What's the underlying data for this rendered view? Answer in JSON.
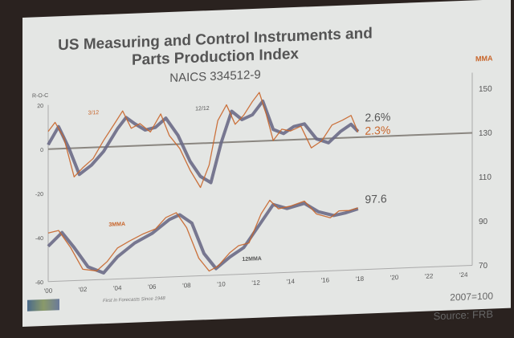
{
  "chart_data": {
    "type": "line",
    "title": "US Measuring and Control Instruments and",
    "title_line2": "Parts Production Index",
    "subtitle": "NAICS 334512-9",
    "left_axis": {
      "label": "R-O-C",
      "ticks": [
        20,
        0,
        -20,
        -40,
        -60
      ],
      "range": [
        -60,
        20
      ]
    },
    "right_axis": {
      "label": "MMA",
      "ticks": [
        150,
        130,
        110,
        90,
        70
      ],
      "range": [
        70,
        150
      ]
    },
    "x_ticks": [
      "'00",
      "'02",
      "'04",
      "'06",
      "'08",
      "'10",
      "'12",
      "'14",
      "'16",
      "'18",
      "'20",
      "'22",
      "'24"
    ],
    "x_range": [
      2000,
      2024.5
    ],
    "series": [
      {
        "name": "12/12",
        "axis": "left",
        "color": "#6a6a86",
        "x": [
          2000,
          2000.6,
          2001.2,
          2001.8,
          2002.5,
          2003.2,
          2004,
          2004.5,
          2005,
          2005.6,
          2006.2,
          2006.8,
          2007.5,
          2008.2,
          2008.8,
          2009.4,
          2010,
          2010.6,
          2011.2,
          2011.8,
          2012.4,
          2013,
          2013.6,
          2014.2,
          2014.8,
          2015.5,
          2016.2,
          2016.9,
          2017.5,
          2017.9
        ],
        "y": [
          2,
          10,
          0,
          -12,
          -8,
          -2,
          8,
          13,
          10,
          7,
          8,
          12,
          4,
          -8,
          -15,
          -18,
          0,
          14,
          10,
          12,
          18,
          5,
          3,
          6,
          7,
          0,
          -2,
          3,
          6,
          2.6
        ]
      },
      {
        "name": "3/12",
        "axis": "left",
        "color": "#c8652a",
        "x": [
          2000,
          2000.4,
          2000.9,
          2001.5,
          2002,
          2002.6,
          2003.2,
          2003.8,
          2004.3,
          2004.8,
          2005.3,
          2005.9,
          2006.5,
          2007,
          2007.6,
          2008.2,
          2008.8,
          2009.3,
          2009.8,
          2010.3,
          2010.8,
          2011.3,
          2011.8,
          2012.2,
          2012.6,
          2013,
          2013.5,
          2014,
          2014.6,
          2015.2,
          2015.8,
          2016.4,
          2017,
          2017.5,
          2017.9
        ],
        "y": [
          8,
          12,
          5,
          -13,
          -9,
          -5,
          3,
          10,
          16,
          8,
          10,
          6,
          14,
          4,
          -2,
          -12,
          -20,
          -10,
          10,
          17,
          8,
          12,
          18,
          22,
          12,
          0,
          5,
          4,
          6,
          -4,
          -1,
          6,
          8,
          10,
          2.3
        ]
      },
      {
        "name": "12MMA",
        "axis": "right",
        "color": "#6a6a86",
        "x": [
          2000,
          2000.8,
          2001.5,
          2002.3,
          2003.2,
          2004,
          2005,
          2006,
          2007,
          2007.6,
          2008.3,
          2009,
          2009.7,
          2010.5,
          2011.3,
          2012.2,
          2013,
          2013.8,
          2014.8,
          2015.6,
          2016.5,
          2017.2,
          2017.9
        ],
        "y": [
          86,
          92,
          85,
          76,
          73,
          80,
          86,
          90,
          96,
          98,
          94,
          80,
          73,
          78,
          82,
          92,
          101,
          99,
          101,
          97,
          95,
          96,
          97.6
        ]
      },
      {
        "name": "3MMA",
        "axis": "right",
        "color": "#c8652a",
        "x": [
          2000,
          2000.6,
          2001.3,
          2002,
          2002.8,
          2003.4,
          2004,
          2004.7,
          2005.5,
          2006.2,
          2006.8,
          2007.4,
          2008,
          2008.7,
          2009.3,
          2009.8,
          2010.5,
          2011,
          2011.6,
          2012.3,
          2012.8,
          2013.3,
          2014,
          2014.8,
          2015.5,
          2016.3,
          2016.8,
          2017.4,
          2017.9
        ],
        "y": [
          92,
          93,
          85,
          75,
          74,
          78,
          84,
          87,
          90,
          92,
          97,
          99,
          92,
          78,
          72,
          74,
          80,
          83,
          84,
          97,
          103,
          99,
          100,
          102,
          96,
          94,
          97,
          97,
          98
        ]
      }
    ],
    "annotations": {
      "roc_1212": "2.6%",
      "roc_312": "2.3%",
      "mma12_value": "97.6",
      "label_312": "3/12",
      "label_1212": "12/12",
      "label_3mma": "3MMA",
      "label_12mma": "12MMA"
    },
    "colors": {
      "orange": "#c8652a",
      "purple_gray": "#6a6a86",
      "zero_line": "#8a8680"
    }
  },
  "footer": {
    "tagline": "First in Forecasts Since 1948",
    "base": "2007=100",
    "source": "Source: FRB"
  }
}
